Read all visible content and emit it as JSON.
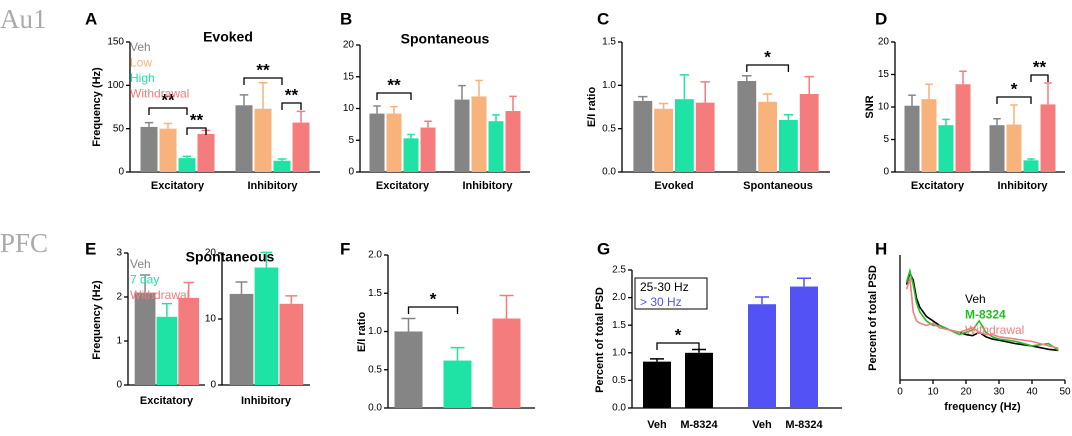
{
  "region_labels": [
    "Au1",
    "PFC"
  ],
  "panel_letters": [
    "A",
    "B",
    "C",
    "D",
    "E",
    "F",
    "G",
    "H"
  ],
  "chart_data": [
    {
      "type": "bar",
      "title": "Evoked",
      "ylabel": "Frequency (Hz)",
      "ylim": [
        0,
        150
      ],
      "yticks": [
        0,
        50,
        100,
        150
      ],
      "categories": [
        "Excitatory",
        "Inhibitory"
      ],
      "series": [
        {
          "name": "Veh",
          "color": "#858585",
          "values": [
            52,
            77
          ],
          "errors": [
            5,
            12
          ]
        },
        {
          "name": "Low",
          "color": "#f8b27c",
          "values": [
            50,
            73
          ],
          "errors": [
            6,
            30
          ]
        },
        {
          "name": "High",
          "color": "#1ee3a4",
          "values": [
            16,
            13
          ],
          "errors": [
            2,
            2
          ]
        },
        {
          "name": "Withdrawal",
          "color": "#f47c7c",
          "values": [
            44,
            57
          ],
          "errors": [
            4,
            13
          ]
        }
      ],
      "significance": [
        "**",
        "**",
        "**",
        "**"
      ]
    },
    {
      "type": "bar",
      "title": "Spontaneous",
      "ylim": [
        0,
        20
      ],
      "yticks": [
        0,
        5,
        10,
        15,
        20
      ],
      "categories": [
        "Excitatory",
        "Inhibitory"
      ],
      "series": [
        {
          "color": "#858585",
          "values": [
            9.2,
            11.4
          ],
          "errors": [
            1.2,
            2.2
          ]
        },
        {
          "color": "#f8b27c",
          "values": [
            9.2,
            11.9
          ],
          "errors": [
            1.1,
            2.5
          ]
        },
        {
          "color": "#1ee3a4",
          "values": [
            5.3,
            8
          ],
          "errors": [
            0.6,
            1
          ]
        },
        {
          "color": "#f47c7c",
          "values": [
            7,
            9.6
          ],
          "errors": [
            1,
            2.3
          ]
        }
      ],
      "significance": [
        "**"
      ]
    },
    {
      "type": "bar",
      "ylabel": "E/I ratio",
      "ylim": [
        0,
        1.5
      ],
      "yticks": [
        {
          "value": 0,
          "label": "0.0"
        },
        0.5,
        {
          "value": 1,
          "label": "1.0"
        },
        1.5
      ],
      "categories": [
        "Evoked",
        "Spontaneous"
      ],
      "series": [
        {
          "color": "#858585",
          "values": [
            0.82,
            1.05
          ],
          "errors": [
            0.05,
            0.06
          ]
        },
        {
          "color": "#f8b27c",
          "values": [
            0.73,
            0.81
          ],
          "errors": [
            0.06,
            0.09
          ]
        },
        {
          "color": "#1ee3a4",
          "values": [
            0.84,
            0.6
          ],
          "errors": [
            0.28,
            0.06
          ]
        },
        {
          "color": "#f47c7c",
          "values": [
            0.8,
            0.9
          ],
          "errors": [
            0.24,
            0.2
          ]
        }
      ],
      "significance": [
        "*"
      ]
    },
    {
      "type": "bar",
      "ylabel": "SNR",
      "ylim": [
        0,
        20
      ],
      "yticks": [
        0,
        5,
        10,
        15,
        20
      ],
      "categories": [
        "Excitatory",
        "Inhibitory"
      ],
      "series": [
        {
          "color": "#858585",
          "values": [
            10.2,
            7.2
          ],
          "errors": [
            1.6,
            1
          ]
        },
        {
          "color": "#f8b27c",
          "values": [
            11.2,
            7.3
          ],
          "errors": [
            2.3,
            3
          ]
        },
        {
          "color": "#1ee3a4",
          "values": [
            7.2,
            1.8
          ],
          "errors": [
            0.9,
            0.2
          ]
        },
        {
          "color": "#f47c7c",
          "values": [
            13.5,
            10.4
          ],
          "errors": [
            2,
            3.3
          ]
        }
      ],
      "significance": [
        "*",
        "**"
      ]
    },
    {
      "type": "bar",
      "title": "Spontaneous",
      "ylabel": "Frequency (Hz)",
      "subplots": [
        {
          "category": "Excitatory",
          "ylim": [
            0,
            3
          ],
          "yticks": [
            0,
            1,
            2,
            3
          ]
        },
        {
          "category": "Inhibitory",
          "ylim": [
            0,
            20
          ],
          "yticks": [
            0,
            10,
            20
          ]
        }
      ],
      "series": [
        {
          "name": "Veh",
          "color": "#858585",
          "values": [
            2.1,
            13.8
          ],
          "errors": [
            0.4,
            1.8
          ]
        },
        {
          "name": "7 day",
          "color": "#1ee3a4",
          "values": [
            1.55,
            17.8
          ],
          "errors": [
            0.3,
            2.3
          ]
        },
        {
          "name": "Withdrawal",
          "color": "#f47c7c",
          "values": [
            1.98,
            12.3
          ],
          "errors": [
            0.35,
            1.2
          ]
        }
      ]
    },
    {
      "type": "bar",
      "ylabel": "E/I ratio",
      "ylim": [
        0,
        2
      ],
      "yticks": [
        {
          "value": 0,
          "label": "0.0"
        },
        0.5,
        {
          "value": 1,
          "label": "1.0"
        },
        1.5,
        {
          "value": 2,
          "label": "2.0"
        }
      ],
      "categories": [
        null,
        null,
        null
      ],
      "values": [
        1.0,
        0.62,
        1.17
      ],
      "errors": [
        0.17,
        0.17,
        0.3
      ],
      "colors": [
        "#858585",
        "#1ee3a4",
        "#f47c7c"
      ],
      "significance": [
        "*"
      ]
    },
    {
      "type": "bar",
      "ylabel": "Percent of total PSD",
      "ylim": [
        0,
        2.5
      ],
      "yticks": [
        {
          "value": 0,
          "label": "0.0"
        },
        0.5,
        {
          "value": 1,
          "label": "1.0"
        },
        1.5,
        {
          "value": 2,
          "label": "2.0"
        },
        2.5
      ],
      "series": [
        {
          "name": "25-30 Hz",
          "color": "#000000",
          "categories": [
            "Veh",
            "M-8324"
          ],
          "values": [
            0.84,
            1.0
          ],
          "errors": [
            0.05,
            0.06
          ]
        },
        {
          "name": "> 30 Hz",
          "color": "#5252f5",
          "categories": [
            "Veh",
            "M-8324"
          ],
          "values": [
            1.88,
            2.2
          ],
          "errors": [
            0.13,
            0.15
          ]
        }
      ],
      "significance": [
        "*"
      ]
    },
    {
      "type": "line",
      "xlabel": "frequency (Hz)",
      "ylabel": "Percent of total PSD",
      "xlim": [
        0,
        50
      ],
      "xticks": [
        0,
        10,
        20,
        30,
        40,
        50
      ],
      "ylim": [
        0,
        5.5
      ],
      "x": [
        2,
        3,
        4,
        5,
        6,
        8,
        10,
        12,
        15,
        18,
        20,
        22,
        24,
        26,
        28,
        30,
        35,
        40,
        45,
        48
      ],
      "series": [
        {
          "name": "Veh",
          "color": "#000000",
          "values": [
            4.2,
            4.7,
            4.4,
            3.6,
            3.2,
            2.8,
            2.6,
            2.4,
            2.2,
            2.1,
            2.0,
            1.95,
            2.1,
            1.9,
            1.8,
            1.75,
            1.6,
            1.5,
            1.35,
            1.3
          ]
        },
        {
          "name": "M-8324",
          "color": "#1fbf1f",
          "values": [
            4.3,
            4.8,
            4.2,
            3.4,
            3.0,
            2.6,
            2.4,
            2.4,
            2.2,
            2.0,
            2.1,
            2.2,
            2.6,
            2.1,
            1.9,
            1.8,
            1.7,
            1.5,
            1.6,
            1.3
          ]
        },
        {
          "name": "Withdrawal",
          "color": "#f08080",
          "values": [
            4.0,
            4.5,
            3.0,
            2.6,
            2.5,
            2.4,
            2.5,
            2.3,
            2.2,
            2.1,
            2.2,
            2.3,
            2.1,
            2.0,
            2.0,
            1.9,
            1.8,
            1.7,
            1.5,
            1.4
          ]
        }
      ]
    }
  ]
}
